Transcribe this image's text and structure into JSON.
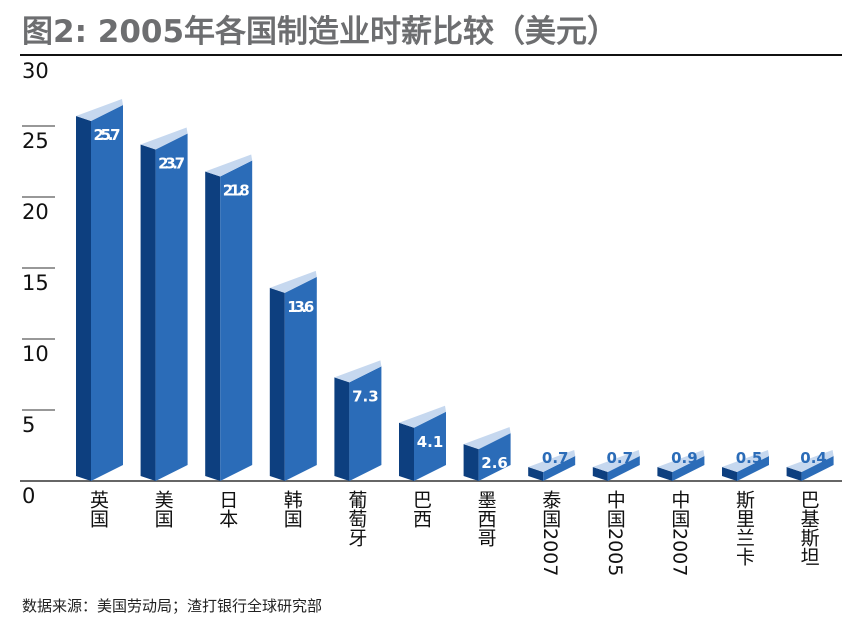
{
  "title": "图2: 2005年各国制造业时薪比较（美元）",
  "source": "数据来源：美国劳动局；渣打银行全球研究部",
  "colors": {
    "front": "#2b6cb8",
    "side": "#0d3f7f",
    "top": "#c6d8ef",
    "label_inside": "#ffffff",
    "label_outside": "#2b6cb8"
  },
  "chart_data": {
    "type": "bar",
    "title": "图2: 2005年各国制造业时薪比较（美元）",
    "xlabel": "",
    "ylabel": "",
    "ylim": [
      0,
      30
    ],
    "yticks": [
      "0",
      "5",
      "10",
      "15",
      "20",
      "25",
      "30"
    ],
    "categories": [
      "英国",
      "美国",
      "日本",
      "韩国",
      "葡萄牙",
      "巴西",
      "墨西哥",
      "泰国2007",
      "中国2005",
      "中国2007",
      "斯里兰卡",
      "巴基斯坦"
    ],
    "values": [
      25.7,
      23.7,
      21.8,
      13.6,
      7.3,
      4.1,
      2.6,
      0.7,
      0.7,
      0.9,
      0.5,
      0.4
    ],
    "labels": [
      "25.7",
      "23.7",
      "21.8",
      "13.6",
      "7.3",
      "4.1",
      "2.6",
      "0.7",
      "0.7",
      "0.9",
      "0.5",
      "0.4"
    ],
    "grid": false
  }
}
